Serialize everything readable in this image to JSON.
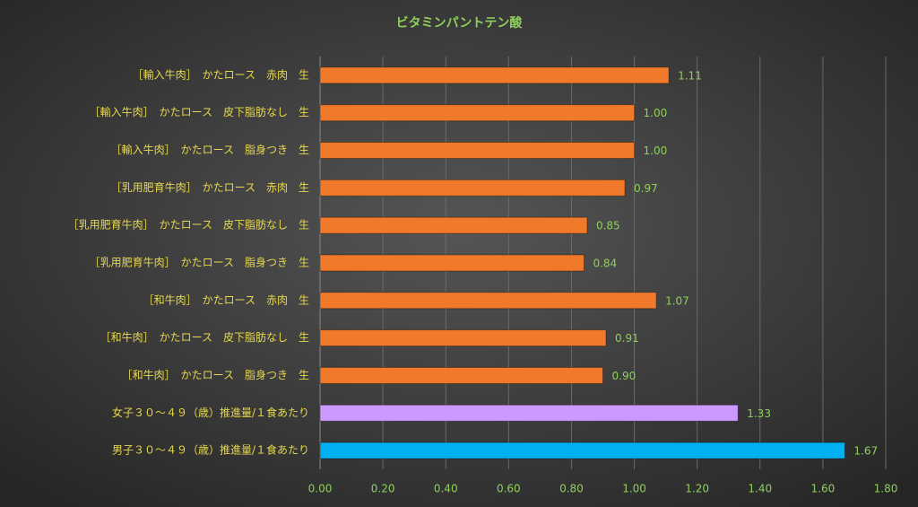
{
  "chart_data": {
    "type": "hbar",
    "title": "ビタミンパントテン酸",
    "categories": [
      "［輸入牛肉］　かたロース　赤肉　生",
      "［輸入牛肉］　かたロース　皮下脂肪なし　生",
      "［輸入牛肉］　かたロース　脂身つき　生",
      "［乳用肥育牛肉］　かたロース　赤肉　生",
      "［乳用肥育牛肉］　かたロース　皮下脂肪なし　生",
      "［乳用肥育牛肉］　かたロース　脂身つき　生",
      "［和牛肉］　かたロース　赤肉　生",
      "［和牛肉］　かたロース　皮下脂肪なし　生",
      "［和牛肉］　かたロース　脂身つき　生",
      "女子３０～４９（歳）推進量/１食あたり",
      "男子３０～４９（歳）推進量/１食あたり"
    ],
    "values": [
      1.11,
      1.0,
      1.0,
      0.97,
      0.85,
      0.84,
      1.07,
      0.91,
      0.9,
      1.33,
      1.67
    ],
    "value_labels": [
      "1.11",
      "1.00",
      "1.00",
      "0.97",
      "0.85",
      "0.84",
      "1.07",
      "0.91",
      "0.90",
      "1.33",
      "1.67"
    ],
    "colors": [
      "#f07a2a",
      "#f07a2a",
      "#f07a2a",
      "#f07a2a",
      "#f07a2a",
      "#f07a2a",
      "#f07a2a",
      "#f07a2a",
      "#f07a2a",
      "#cc99ff",
      "#00b0f0"
    ],
    "xlim": [
      0,
      1.8
    ],
    "xticks": [
      {
        "value": 0,
        "label": "0.00"
      },
      {
        "value": 0.2,
        "label": "0.20"
      },
      {
        "value": 0.4,
        "label": "0.40"
      },
      {
        "value": 0.6,
        "label": "0.60"
      },
      {
        "value": 0.8,
        "label": "0.80"
      },
      {
        "value": 1.0,
        "label": "1.00"
      },
      {
        "value": 1.2,
        "label": "1.20"
      },
      {
        "value": 1.4,
        "label": "1.40"
      },
      {
        "value": 1.6,
        "label": "1.60"
      },
      {
        "value": 1.8,
        "label": "1.80"
      }
    ],
    "grid": true
  }
}
